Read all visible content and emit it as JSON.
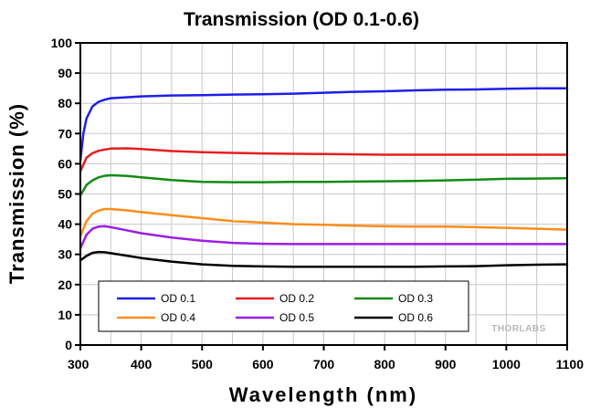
{
  "chart_data": {
    "type": "line",
    "title": "Transmission (OD 0.1-0.6)",
    "xlabel": "Wavelength (nm)",
    "ylabel": "Transmission (%)",
    "xlim": [
      300,
      1100
    ],
    "ylim": [
      0,
      100
    ],
    "xticks": [
      300,
      400,
      500,
      600,
      700,
      800,
      900,
      1000,
      1100
    ],
    "yticks": [
      0,
      10,
      20,
      30,
      40,
      50,
      60,
      70,
      80,
      90,
      100
    ],
    "grid": true,
    "legend_position": "bottom-left",
    "watermark": "THORLABS",
    "series": [
      {
        "name": "OD 0.1",
        "color": "#1f1fe6",
        "x": [
          300,
          305,
          310,
          320,
          330,
          340,
          350,
          375,
          400,
          450,
          500,
          550,
          600,
          650,
          700,
          750,
          800,
          850,
          900,
          950,
          1000,
          1050,
          1100
        ],
        "y": [
          61,
          70,
          75,
          79,
          80.5,
          81.2,
          81.7,
          82.0,
          82.3,
          82.6,
          82.7,
          82.9,
          83.0,
          83.2,
          83.5,
          83.8,
          84.0,
          84.3,
          84.5,
          84.6,
          84.8,
          85.0,
          85.0
        ]
      },
      {
        "name": "OD 0.2",
        "color": "#e61e1e",
        "x": [
          300,
          310,
          320,
          330,
          340,
          350,
          375,
          400,
          450,
          500,
          550,
          600,
          650,
          700,
          750,
          800,
          850,
          900,
          950,
          1000,
          1050,
          1100
        ],
        "y": [
          57.5,
          62,
          63.5,
          64.3,
          64.7,
          65.0,
          65.1,
          64.9,
          64.2,
          63.8,
          63.6,
          63.4,
          63.3,
          63.2,
          63.1,
          63.0,
          63.0,
          63.0,
          63.0,
          63.0,
          63.0,
          63.0
        ]
      },
      {
        "name": "OD 0.3",
        "color": "#138a13",
        "x": [
          300,
          310,
          320,
          330,
          340,
          350,
          375,
          400,
          450,
          500,
          550,
          600,
          650,
          700,
          750,
          800,
          850,
          900,
          950,
          1000,
          1050,
          1100
        ],
        "y": [
          49.5,
          53,
          54.5,
          55.5,
          56.0,
          56.2,
          56.0,
          55.5,
          54.6,
          54.0,
          53.9,
          53.9,
          54.0,
          54.0,
          54.1,
          54.2,
          54.3,
          54.5,
          54.7,
          55.0,
          55.1,
          55.2
        ]
      },
      {
        "name": "OD 0.4",
        "color": "#ff8c1a",
        "x": [
          300,
          310,
          320,
          330,
          340,
          350,
          375,
          400,
          450,
          500,
          550,
          600,
          650,
          700,
          750,
          800,
          850,
          900,
          950,
          1000,
          1050,
          1100
        ],
        "y": [
          36,
          41,
          43.5,
          44.5,
          45.0,
          45.0,
          44.6,
          44.0,
          43.0,
          42.0,
          41.0,
          40.5,
          40.0,
          39.8,
          39.5,
          39.3,
          39.2,
          39.2,
          39.0,
          38.8,
          38.5,
          38.2
        ]
      },
      {
        "name": "OD 0.5",
        "color": "#9b1ee6",
        "x": [
          300,
          310,
          320,
          330,
          340,
          350,
          375,
          400,
          450,
          500,
          550,
          600,
          650,
          700,
          750,
          800,
          850,
          900,
          950,
          1000,
          1050,
          1100
        ],
        "y": [
          32,
          36.5,
          38.5,
          39.2,
          39.3,
          39.0,
          38.0,
          37.0,
          35.6,
          34.5,
          33.8,
          33.5,
          33.4,
          33.4,
          33.4,
          33.4,
          33.4,
          33.4,
          33.4,
          33.4,
          33.4,
          33.4
        ]
      },
      {
        "name": "OD 0.6",
        "color": "#000000",
        "x": [
          300,
          310,
          320,
          330,
          340,
          350,
          375,
          400,
          450,
          500,
          550,
          600,
          650,
          700,
          750,
          800,
          850,
          900,
          950,
          1000,
          1050,
          1100
        ],
        "y": [
          28,
          29.5,
          30.5,
          30.8,
          30.7,
          30.4,
          29.6,
          28.8,
          27.6,
          26.7,
          26.2,
          26.0,
          25.9,
          25.9,
          25.9,
          25.9,
          25.9,
          26.0,
          26.1,
          26.4,
          26.6,
          26.7
        ]
      }
    ]
  }
}
